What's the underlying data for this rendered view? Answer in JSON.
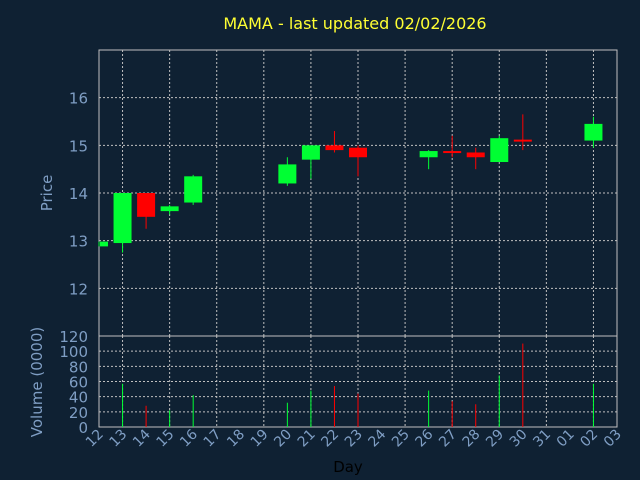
{
  "chart_data": {
    "type": "candlestick",
    "title": "MAMA - last updated 02/02/2026",
    "xlabel": "Day",
    "ylabel": "Price",
    "volume_ylabel": "Volume (0000)",
    "x_tick_labels": [
      "12",
      "13",
      "14",
      "15",
      "16",
      "17",
      "18",
      "19",
      "20",
      "21",
      "22",
      "23",
      "24",
      "25",
      "26",
      "27",
      "28",
      "29",
      "30",
      "31",
      "01",
      "02",
      "03"
    ],
    "price_ylim": [
      11.0,
      17.0
    ],
    "price_yticks": [
      12,
      13,
      14,
      15,
      16
    ],
    "volume_ylim": [
      0,
      120
    ],
    "volume_yticks": [
      0,
      20,
      40,
      60,
      80,
      100,
      120
    ],
    "grid": true,
    "colors": {
      "background": "#0f2133",
      "up": "#00ff33",
      "down": "#ff0000",
      "grid": "#c0c0c0",
      "title": "#ffff33",
      "axis_text": "#7f9ec4"
    },
    "candles": [
      {
        "day": "12",
        "open": 12.88,
        "high": 12.98,
        "low": 12.88,
        "close": 12.98,
        "volume": 0
      },
      {
        "day": "13",
        "open": 12.95,
        "high": 14.0,
        "low": 12.75,
        "close": 14.0,
        "volume": 57
      },
      {
        "day": "14",
        "open": 14.0,
        "high": 14.0,
        "low": 13.25,
        "close": 13.5,
        "volume": 28
      },
      {
        "day": "15",
        "open": 13.62,
        "high": 13.75,
        "low": 13.55,
        "close": 13.72,
        "volume": 22
      },
      {
        "day": "16",
        "open": 13.8,
        "high": 14.38,
        "low": 13.75,
        "close": 14.35,
        "volume": 42
      },
      {
        "day": "20",
        "open": 14.2,
        "high": 14.75,
        "low": 14.15,
        "close": 14.6,
        "volume": 32
      },
      {
        "day": "21",
        "open": 14.7,
        "high": 15.0,
        "low": 14.3,
        "close": 15.0,
        "volume": 48
      },
      {
        "day": "22",
        "open": 15.0,
        "high": 15.3,
        "low": 14.85,
        "close": 14.9,
        "volume": 54
      },
      {
        "day": "23",
        "open": 14.95,
        "high": 15.0,
        "low": 14.35,
        "close": 14.75,
        "volume": 44
      },
      {
        "day": "26",
        "open": 14.75,
        "high": 14.9,
        "low": 14.5,
        "close": 14.88,
        "volume": 48
      },
      {
        "day": "27",
        "open": 14.88,
        "high": 15.2,
        "low": 14.75,
        "close": 14.85,
        "volume": 34
      },
      {
        "day": "28",
        "open": 14.85,
        "high": 14.95,
        "low": 14.5,
        "close": 14.75,
        "volume": 30
      },
      {
        "day": "29",
        "open": 14.65,
        "high": 15.2,
        "low": 14.65,
        "close": 15.15,
        "volume": 68
      },
      {
        "day": "30",
        "open": 15.12,
        "high": 15.65,
        "low": 14.9,
        "close": 15.08,
        "volume": 110
      },
      {
        "day": "02",
        "open": 15.1,
        "high": 15.6,
        "low": 14.95,
        "close": 15.45,
        "volume": 57
      }
    ]
  }
}
